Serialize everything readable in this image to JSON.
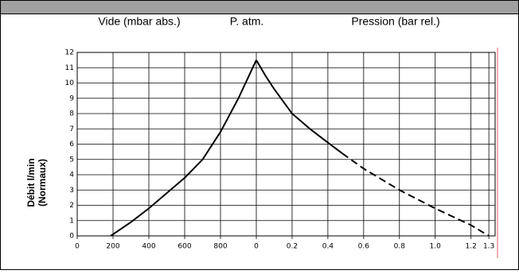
{
  "chart_data": {
    "type": "line",
    "headers": [
      "Vide (mbar abs.)",
      "P. atm.",
      "Pression (bar rel.)"
    ],
    "y_label": [
      "Débit l/min",
      "(Normaux)"
    ],
    "ylim": [
      0,
      12
    ],
    "yticks": [
      0,
      1,
      2,
      3,
      4,
      5,
      6,
      7,
      8,
      9,
      10,
      11,
      12
    ],
    "xlim": [
      0,
      1000
    ],
    "xticks": [
      0,
      200,
      400,
      600,
      800
    ],
    "x2lim": [
      0,
      1.335
    ],
    "x2ticks": [
      0,
      0.2,
      0.4,
      0.6,
      0.8,
      {
        "value": 1,
        "label": "1.0"
      },
      1.2,
      1.3
    ],
    "grid": true,
    "series": [
      {
        "color": "#000000",
        "dashed": false,
        "axis": "x",
        "x": [
          187,
          300,
          400,
          500,
          600,
          700,
          800,
          900,
          1000
        ],
        "values": [
          0,
          0.9,
          1.8,
          2.8,
          3.8,
          5,
          6.8,
          9,
          11.5
        ]
      },
      {
        "color": "#000000",
        "dashed": false,
        "axis": "x2",
        "x": [
          0,
          0.05,
          0.1,
          0.2,
          0.3,
          0.4,
          0.48
        ],
        "values": [
          11.5,
          10.5,
          9.6,
          8,
          7,
          6.1,
          5.4
        ]
      },
      {
        "color": "#000000",
        "dashed": true,
        "axis": "x2",
        "x": [
          0.48,
          0.6,
          0.8,
          1.0,
          1.2,
          1.3
        ],
        "values": [
          5.4,
          4.4,
          3,
          1.8,
          0.7,
          0
        ]
      }
    ]
  }
}
